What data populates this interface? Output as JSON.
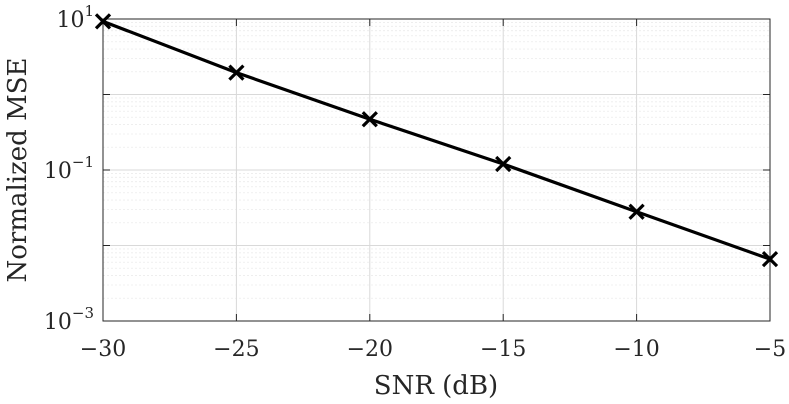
{
  "chart_data": {
    "type": "line",
    "xlabel": "SNR (dB)",
    "ylabel": "Normalized MSE",
    "x": [
      -30,
      -25,
      -20,
      -15,
      -10,
      -5
    ],
    "series": [
      {
        "values": [
          9.3,
          1.95,
          0.47,
          0.12,
          0.028,
          0.0066
        ]
      }
    ],
    "xlim": [
      -30,
      -5
    ],
    "ylim": [
      0.001,
      10
    ],
    "yscale": "log",
    "xticks": [
      -30,
      -25,
      -20,
      -15,
      -10,
      -5
    ],
    "xtick_labels": [
      "−30",
      "−25",
      "−20",
      "−15",
      "−10",
      "−5"
    ],
    "yticks": [
      10,
      0.1,
      0.001
    ],
    "ytick_labels": [
      {
        "base": "10",
        "exp": "1"
      },
      {
        "base": "10",
        "exp": "−1"
      },
      {
        "base": "10",
        "exp": "−3"
      }
    ],
    "grid": true,
    "marker": "x",
    "line_color": "#000000",
    "legend": "none"
  }
}
